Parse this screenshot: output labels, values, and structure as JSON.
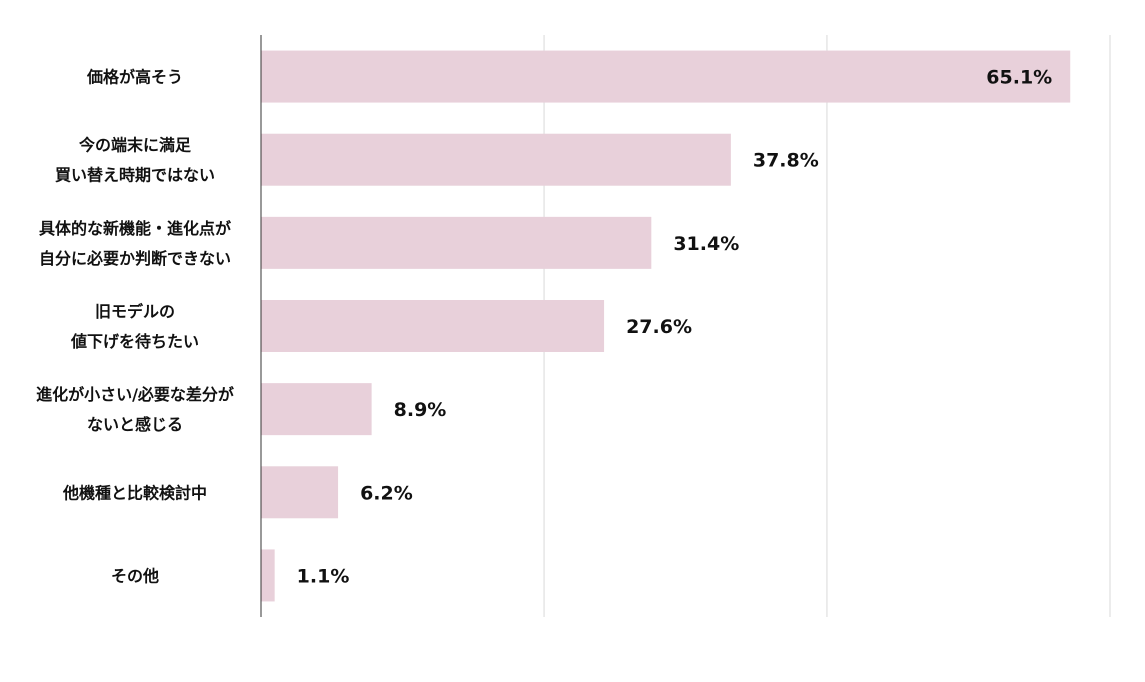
{
  "chart_data": {
    "type": "bar",
    "orientation": "horizontal",
    "title": "",
    "xlabel": "",
    "ylabel": "",
    "categories": [
      [
        "価格が高そう"
      ],
      [
        "今の端末に満足",
        "買い替え時期ではない"
      ],
      [
        "具体的な新機能・進化点が",
        "自分に必要か判断できない"
      ],
      [
        "旧モデルの",
        "値下げを待ちたい"
      ],
      [
        "進化が小さい/必要な差分が",
        "ないと感じる"
      ],
      [
        "他機種と比較検討中"
      ],
      [
        "その他"
      ]
    ],
    "values": [
      65.1,
      37.8,
      31.4,
      27.6,
      8.9,
      6.2,
      1.1
    ],
    "value_labels": [
      "65.1%",
      "37.8%",
      "31.4%",
      "27.6%",
      "8.9%",
      "6.2%",
      "1.1%"
    ],
    "xlim": [
      0,
      68.3
    ],
    "gridlines": [
      22.77,
      45.53,
      68.3
    ],
    "grid": true,
    "bar_color": "#e8d0da",
    "legend": "none"
  }
}
